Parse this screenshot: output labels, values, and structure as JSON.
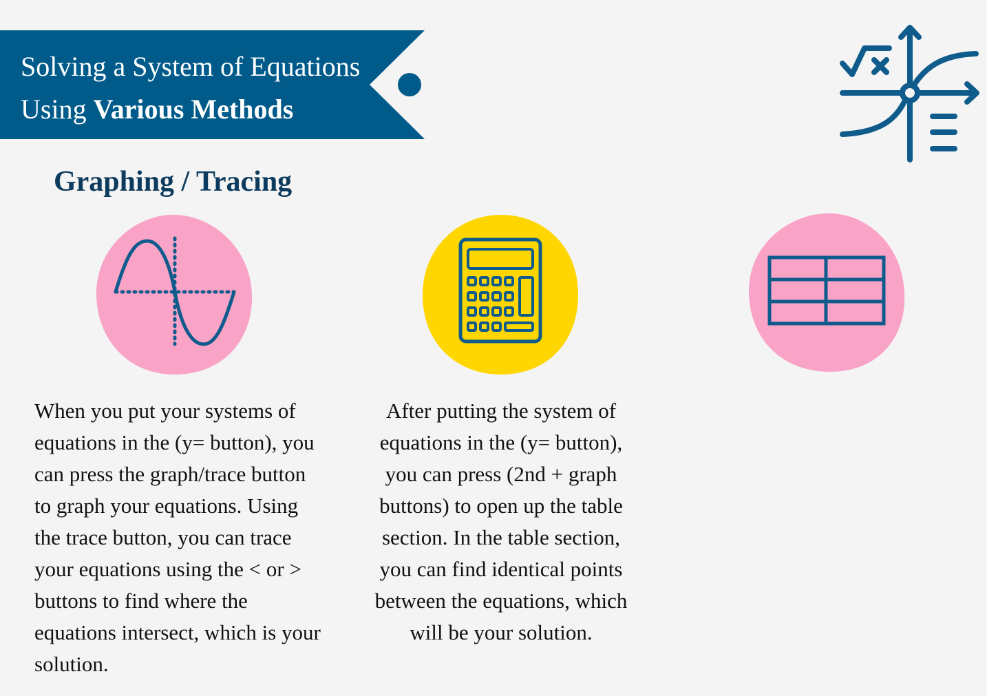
{
  "banner": {
    "title_line1": "Solving a System of Equations",
    "title_line2_prefix": "Using ",
    "title_line2_bold": "Various Methods"
  },
  "section": {
    "heading": "Graphing / Tracing"
  },
  "icons": {
    "corner": "graph-equation-icon",
    "first": "sine-wave-graph-icon",
    "second": "calculator-icon",
    "third": "table-grid-icon"
  },
  "paragraphs": {
    "graph_trace": "When you put your systems of equations in the (y= button), you can press the graph/trace button to graph your equations. Using the trace button, you can trace your equations using the < or > buttons to find where the equations intersect, which is your solution.",
    "table": "After putting the system of equations in the (y= button), you can press (2nd + graph buttons) to open up the table section. In the table section, you can find identical points between the equations, which will be your solution."
  },
  "colors": {
    "banner": "#005b8a",
    "heading": "#0d3b5e",
    "icon_stroke": "#0f5b8c",
    "pink": "#f9a3c7",
    "yellow": "#ffd600",
    "background": "#f4f4f4"
  }
}
